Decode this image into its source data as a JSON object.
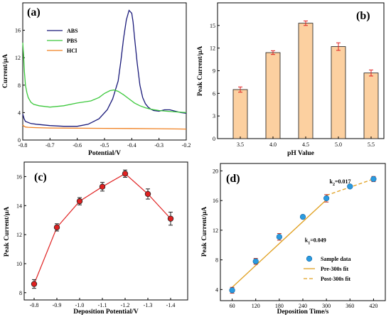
{
  "chart_data": [
    {
      "id": "a",
      "type": "line",
      "panel_label": "(a)",
      "xlabel": "Potential/V",
      "ylabel": "Current/μA",
      "xlim": [
        -0.8,
        -0.2
      ],
      "ylim": [
        0,
        20
      ],
      "x_reversed": false,
      "xticks": [
        -0.8,
        -0.7,
        -0.6,
        -0.5,
        -0.4,
        -0.3,
        -0.2
      ],
      "xtick_labels": [
        "-0.8",
        "-0.7",
        "-0.6",
        "-0.5",
        "-0.4",
        "-0.3",
        "-0.2"
      ],
      "yticks": [
        0,
        4,
        8,
        12,
        16
      ],
      "ytick_labels": [
        "0",
        "4",
        "8",
        "12",
        "16"
      ],
      "legend_position": "top-left",
      "series": [
        {
          "name": "ABS",
          "color": "#1a1a7a",
          "x": [
            -0.8,
            -0.795,
            -0.79,
            -0.77,
            -0.75,
            -0.7,
            -0.65,
            -0.6,
            -0.56,
            -0.52,
            -0.49,
            -0.47,
            -0.45,
            -0.44,
            -0.43,
            -0.42,
            -0.41,
            -0.4,
            -0.395,
            -0.39,
            -0.38,
            -0.37,
            -0.36,
            -0.35,
            -0.34,
            -0.33,
            -0.32,
            -0.3,
            -0.28,
            -0.26,
            -0.24,
            -0.22,
            -0.2
          ],
          "y": [
            3.8,
            3.1,
            2.7,
            2.4,
            2.3,
            2.1,
            2.0,
            2.0,
            2.3,
            3.1,
            4.4,
            6.0,
            8.6,
            11.5,
            14.8,
            17.5,
            18.9,
            18.5,
            17.2,
            15.0,
            11.2,
            8.0,
            6.2,
            5.3,
            4.8,
            4.5,
            4.3,
            4.2,
            4.4,
            4.4,
            4.2,
            4.0,
            3.9
          ]
        },
        {
          "name": "PBS",
          "color": "#3cc83c",
          "x": [
            -0.8,
            -0.797,
            -0.794,
            -0.79,
            -0.785,
            -0.78,
            -0.77,
            -0.76,
            -0.74,
            -0.7,
            -0.65,
            -0.6,
            -0.55,
            -0.52,
            -0.5,
            -0.48,
            -0.465,
            -0.45,
            -0.43,
            -0.41,
            -0.39,
            -0.37,
            -0.35,
            -0.33,
            -0.3,
            -0.27,
            -0.24,
            -0.2
          ],
          "y": [
            14.2,
            12.5,
            10.0,
            8.0,
            6.9,
            6.2,
            5.5,
            5.2,
            5.0,
            4.8,
            5.0,
            5.4,
            5.7,
            6.2,
            6.8,
            7.2,
            7.3,
            7.1,
            6.6,
            6.0,
            5.4,
            5.0,
            4.7,
            4.5,
            4.3,
            4.2,
            4.1,
            4.0
          ]
        },
        {
          "name": "HCl",
          "color": "#f08020",
          "x": [
            -0.8,
            -0.795,
            -0.79,
            -0.78,
            -0.75,
            -0.7,
            -0.6,
            -0.5,
            -0.4,
            -0.3,
            -0.2
          ],
          "y": [
            2.2,
            2.0,
            1.9,
            1.85,
            1.8,
            1.75,
            1.72,
            1.7,
            1.68,
            1.65,
            1.6
          ]
        }
      ]
    },
    {
      "id": "b",
      "type": "bar",
      "panel_label": "(b)",
      "xlabel": "pH Value",
      "ylabel": "Peak Current/μA",
      "ylim": [
        0,
        18
      ],
      "yticks": [
        0,
        3,
        6,
        9,
        12,
        15
      ],
      "ytick_labels": [
        "0",
        "3",
        "6",
        "9",
        "12",
        "15"
      ],
      "categories": [
        "3.5",
        "4.0",
        "4.5",
        "5.0",
        "5.5"
      ],
      "values": [
        6.5,
        11.4,
        15.3,
        12.2,
        8.7
      ],
      "errors": [
        0.35,
        0.25,
        0.3,
        0.5,
        0.4
      ],
      "bar_color": "#fcd0a0",
      "bar_edge": "#1a1a1a",
      "error_color": "#e02020"
    },
    {
      "id": "c",
      "type": "line",
      "panel_label": "(c)",
      "xlabel": "Deposition Potential/V",
      "ylabel": "Peak Current/μA",
      "categories": [
        "-0.8",
        "-0.9",
        "-1.0",
        "-1.1",
        "-1.2",
        "-1.3",
        "-1.4"
      ],
      "values": [
        8.6,
        12.5,
        14.3,
        15.3,
        16.2,
        14.8,
        13.1
      ],
      "errors": [
        0.3,
        0.25,
        0.25,
        0.3,
        0.25,
        0.35,
        0.45
      ],
      "ylim": [
        7.5,
        17
      ],
      "yticks": [
        8,
        10,
        12,
        14,
        16
      ],
      "ytick_labels": [
        "8",
        "10",
        "12",
        "14",
        "16"
      ],
      "color": "#e02020"
    },
    {
      "id": "d",
      "type": "scatter",
      "panel_label": "(d)",
      "xlabel": "Deposition Time/s",
      "ylabel": "Peak Current/μA",
      "xlim": [
        30,
        450
      ],
      "ylim": [
        2.5,
        21
      ],
      "xticks": [
        60,
        120,
        180,
        240,
        300,
        360,
        420
      ],
      "xtick_labels": [
        "60",
        "120",
        "180",
        "240",
        "300",
        "360",
        "420"
      ],
      "yticks": [
        4,
        8,
        12,
        16,
        20
      ],
      "ytick_labels": [
        "4",
        "8",
        "12",
        "16",
        "20"
      ],
      "series": [
        {
          "name": "Sample data",
          "x": [
            60,
            120,
            180,
            240,
            300,
            360,
            420
          ],
          "y": [
            3.9,
            7.8,
            11.1,
            13.8,
            16.3,
            17.9,
            18.9
          ],
          "errors": [
            0.4,
            0.4,
            0.45,
            0.25,
            0.5,
            0.2,
            0.35
          ],
          "color": "#2a9be0"
        },
        {
          "name": "Pre-300s fit",
          "x": [
            60,
            300
          ],
          "y": [
            4.3,
            16.1
          ],
          "color": "#e0a020",
          "style": "solid"
        },
        {
          "name": "Post-300s fit",
          "x": [
            300,
            420
          ],
          "y": [
            16.7,
            18.9
          ],
          "color": "#e0a020",
          "style": "dashed"
        }
      ],
      "annotations": [
        {
          "text_base": "k",
          "text_sub": "1",
          "text_rest": "=0.049",
          "x": 245,
          "y": 10.4
        },
        {
          "text_base": "k",
          "text_sub": "2",
          "text_rest": "=0.017",
          "x": 308,
          "y": 18.3
        }
      ],
      "legend_position": "bottom-right"
    }
  ]
}
